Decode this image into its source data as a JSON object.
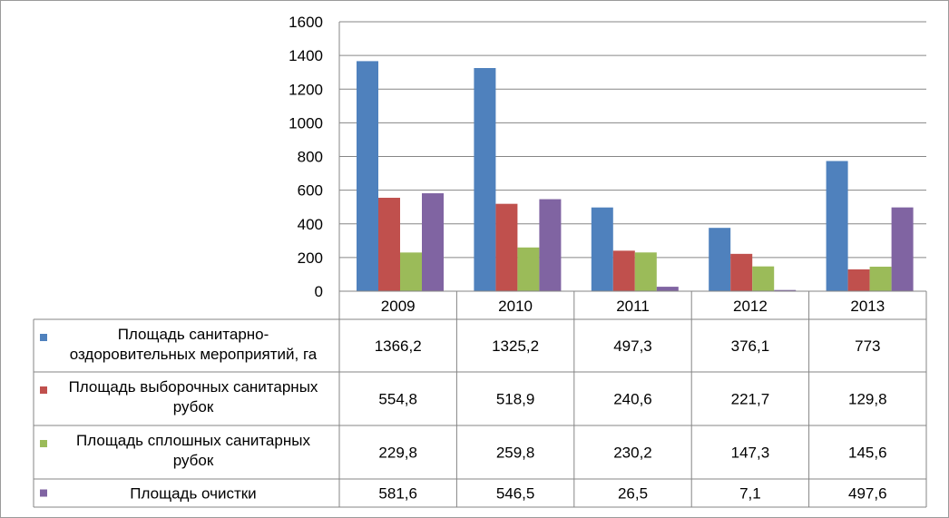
{
  "chart_data": {
    "type": "bar",
    "categories": [
      "2009",
      "2010",
      "2011",
      "2012",
      "2013"
    ],
    "ylim": [
      0,
      1600
    ],
    "yticks": [
      0,
      200,
      400,
      600,
      800,
      1000,
      1200,
      1400,
      1600
    ],
    "grid": true,
    "legend": "data-table",
    "series": [
      {
        "name_lines": [
          "Площадь санитарно-",
          "оздоровительных мероприятий, га"
        ],
        "color": "#4F81BD",
        "values": [
          1366.2,
          1325.2,
          497.3,
          376.1,
          773
        ],
        "labels": [
          "1366,2",
          "1325,2",
          "497,3",
          "376,1",
          "773"
        ]
      },
      {
        "name_lines": [
          "Площадь выборочных санитарных",
          "рубок"
        ],
        "color": "#C0504D",
        "values": [
          554.8,
          518.9,
          240.6,
          221.7,
          129.8
        ],
        "labels": [
          "554,8",
          "518,9",
          "240,6",
          "221,7",
          "129,8"
        ]
      },
      {
        "name_lines": [
          "Площадь сплошных санитарных",
          "рубок"
        ],
        "color": "#9BBB59",
        "values": [
          229.8,
          259.8,
          230.2,
          147.3,
          145.6
        ],
        "labels": [
          "229,8",
          "259,8",
          "230,2",
          "147,3",
          "145,6"
        ]
      },
      {
        "name_lines": [
          "Площадь очистки"
        ],
        "color": "#8064A2",
        "values": [
          581.6,
          546.5,
          26.5,
          7.1,
          497.6
        ],
        "labels": [
          "581,6",
          "546,5",
          "26,5",
          "7,1",
          "497,6"
        ]
      }
    ]
  }
}
